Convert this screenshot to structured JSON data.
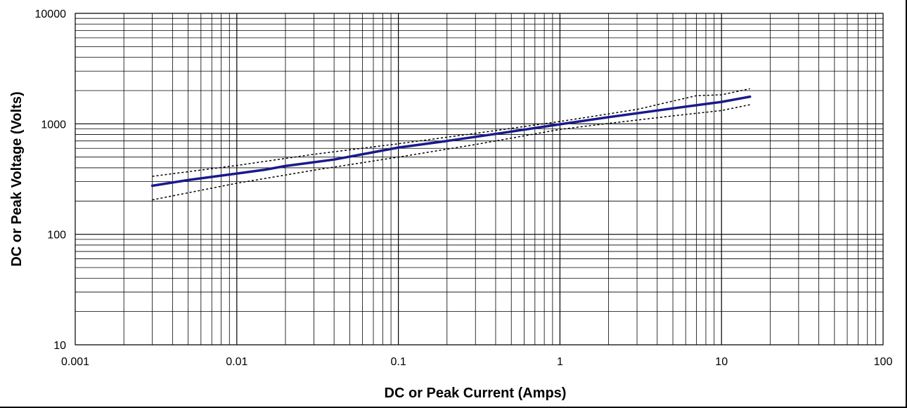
{
  "chart_data": {
    "type": "line",
    "title": "",
    "xlabel": "DC or Peak Current  (Amps)",
    "ylabel": "DC or Peak Voltage  (Volts)",
    "xscale": "log",
    "yscale": "log",
    "xlim": [
      0.001,
      100
    ],
    "ylim": [
      10,
      10000
    ],
    "grid": true,
    "minor_grid": true,
    "legend": "none",
    "xticks": [
      {
        "value": 0.001,
        "label": "0.001"
      },
      {
        "value": 0.01,
        "label": "0.01"
      },
      {
        "value": 0.1,
        "label": "0.1"
      },
      {
        "value": 1,
        "label": "1"
      },
      {
        "value": 10,
        "label": "10"
      },
      {
        "value": 100,
        "label": "100"
      }
    ],
    "yticks": [
      {
        "value": 10,
        "label": "10"
      },
      {
        "value": 100,
        "label": "100"
      },
      {
        "value": 1000,
        "label": "1000"
      },
      {
        "value": 10000,
        "label": "10000"
      }
    ],
    "series": [
      {
        "style": "solid",
        "color": "#1a1a8c",
        "points": [
          [
            0.003,
            275
          ],
          [
            0.005,
            310
          ],
          [
            0.01,
            355
          ],
          [
            0.015,
            385
          ],
          [
            0.02,
            415
          ],
          [
            0.04,
            475
          ],
          [
            0.1,
            610
          ],
          [
            0.2,
            700
          ],
          [
            0.4,
            810
          ],
          [
            1,
            990
          ],
          [
            2,
            1150
          ],
          [
            5,
            1380
          ],
          [
            10,
            1580
          ],
          [
            15,
            1760
          ]
        ]
      },
      {
        "style": "dotted",
        "color": "#000000",
        "points": [
          [
            0.003,
            335
          ],
          [
            0.01,
            420
          ],
          [
            0.03,
            530
          ],
          [
            0.1,
            660
          ],
          [
            0.3,
            820
          ],
          [
            1,
            1050
          ],
          [
            3,
            1350
          ],
          [
            7,
            1800
          ],
          [
            10,
            1830
          ],
          [
            15,
            2080
          ]
        ]
      },
      {
        "style": "dotted",
        "color": "#000000",
        "points": [
          [
            0.003,
            205
          ],
          [
            0.01,
            290
          ],
          [
            0.03,
            380
          ],
          [
            0.1,
            500
          ],
          [
            0.3,
            650
          ],
          [
            1,
            890
          ],
          [
            2,
            1010
          ],
          [
            5,
            1180
          ],
          [
            10,
            1320
          ],
          [
            15,
            1490
          ]
        ]
      }
    ]
  }
}
